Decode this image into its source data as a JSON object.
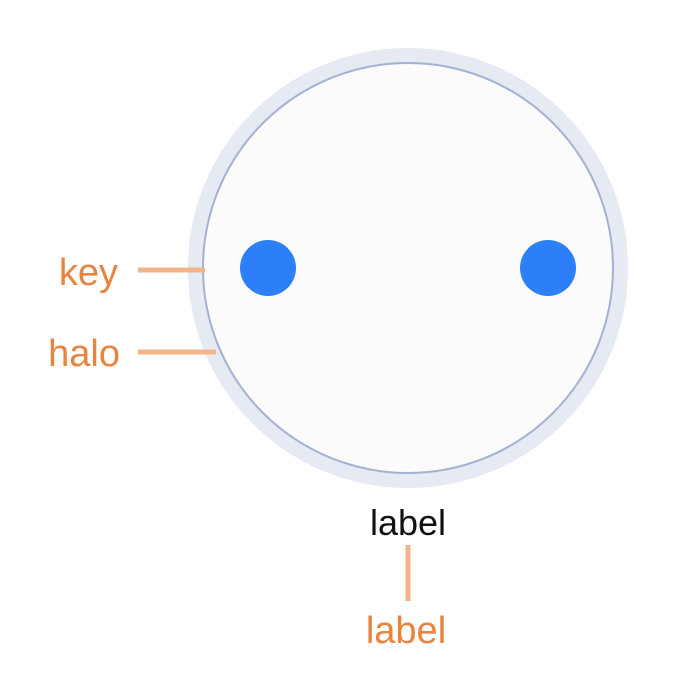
{
  "diagram": {
    "node_label": "label",
    "annotations": {
      "key": "key",
      "halo": "halo",
      "label": "label"
    }
  },
  "colors": {
    "background": "#ffffff",
    "halo_fill": "#e5eaf3",
    "node_fill": "#fcfcfc",
    "node_stroke": "#a4b1d3",
    "port_fill": "#2d7ff9",
    "annotation_text": "#e8843f",
    "annotation_line": "#f2b48b",
    "label_text": "#111111"
  }
}
